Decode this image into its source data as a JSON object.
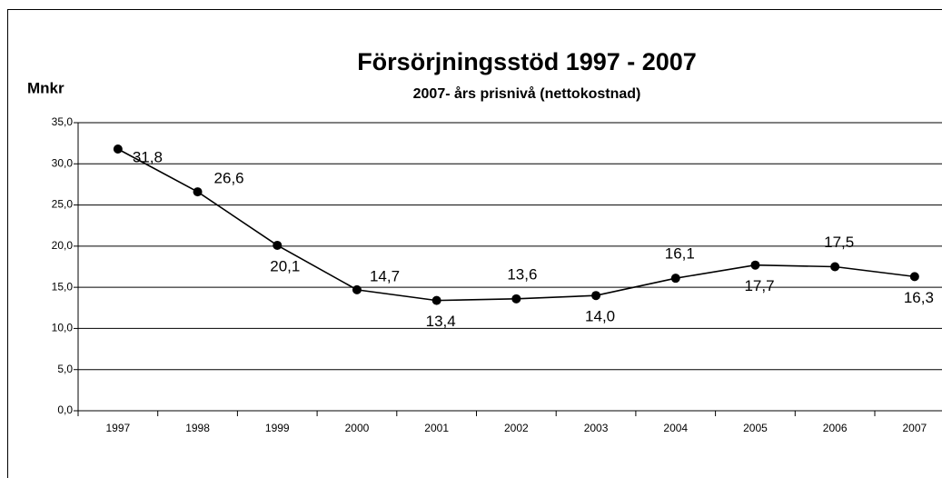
{
  "chart_data": {
    "type": "line",
    "title": "Försörjningsstöd 1997 - 2007",
    "subtitle": "2007- års prisnivå (nettokostnad)",
    "y_label": "Mnkr",
    "categories": [
      "1997",
      "1998",
      "1999",
      "2000",
      "2001",
      "2002",
      "2003",
      "2004",
      "2005",
      "2006",
      "2007"
    ],
    "series": [
      {
        "name": "Försörjningsstöd",
        "color": "#000000",
        "values": [
          31.8,
          26.6,
          20.1,
          14.7,
          13.4,
          13.6,
          14.0,
          16.1,
          17.7,
          17.5,
          16.3
        ],
        "value_labels": [
          "31,8",
          "26,6",
          "20,1",
          "14,7",
          "13,4",
          "13,6",
          "14,0",
          "16,1",
          "17,7",
          "17,5",
          "16,3"
        ]
      }
    ],
    "ylim": [
      0,
      35
    ],
    "yticks": [
      {
        "value": 0,
        "label": "0,0"
      },
      {
        "value": 5,
        "label": "5,0"
      },
      {
        "value": 10,
        "label": "10,0"
      },
      {
        "value": 15,
        "label": "15,0"
      },
      {
        "value": 20,
        "label": "20,0"
      },
      {
        "value": 25,
        "label": "25,0"
      },
      {
        "value": 30,
        "label": "30,0"
      },
      {
        "value": 35,
        "label": "35,0"
      }
    ],
    "grid": true
  }
}
